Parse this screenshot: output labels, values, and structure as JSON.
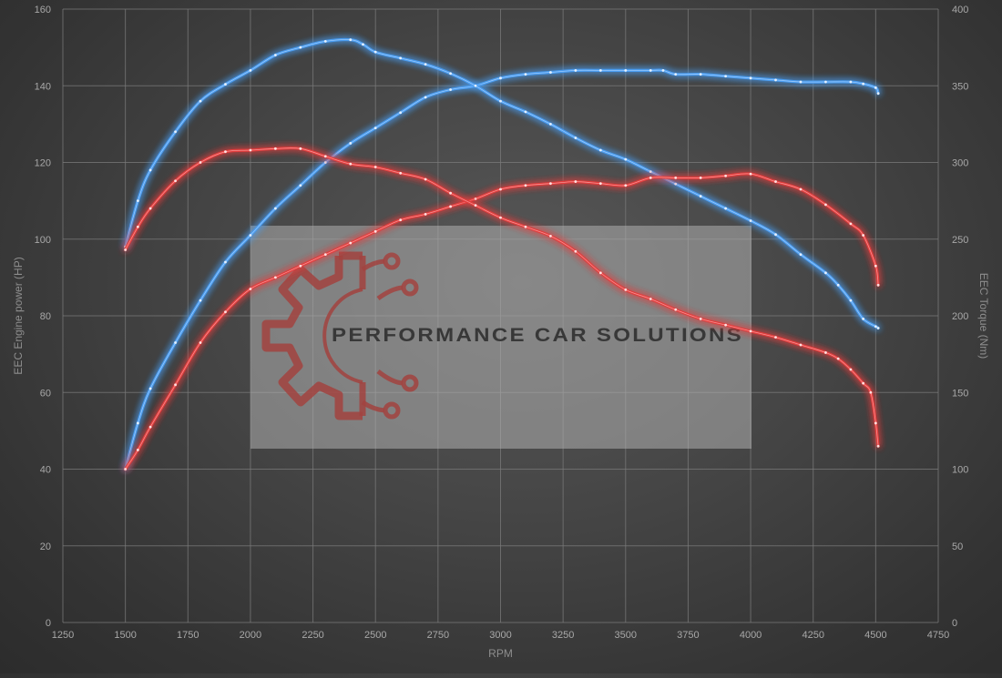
{
  "chart_data": {
    "type": "line",
    "title": "",
    "xlabel": "RPM",
    "ylabel_left": "EEC Engine power (HP)",
    "ylabel_right": "EEC Torque (Nm)",
    "xlim": [
      1250,
      4750
    ],
    "ylim_left": [
      0,
      160
    ],
    "ylim_right": [
      0,
      400
    ],
    "x_ticks": [
      1250,
      1500,
      1750,
      2000,
      2250,
      2500,
      2750,
      3000,
      3250,
      3500,
      3750,
      4000,
      4250,
      4500,
      4750
    ],
    "y_ticks_left": [
      0,
      20,
      40,
      60,
      80,
      100,
      120,
      140,
      160
    ],
    "y_ticks_right": [
      0,
      50,
      100,
      150,
      200,
      250,
      300,
      350,
      400
    ],
    "grid": true,
    "series": [
      {
        "kind": "power-tuned",
        "axis": "left",
        "color": "#4a9cf0",
        "points": [
          [
            1500,
            40
          ],
          [
            1550,
            52
          ],
          [
            1600,
            61
          ],
          [
            1700,
            73
          ],
          [
            1800,
            84
          ],
          [
            1900,
            94
          ],
          [
            2000,
            101
          ],
          [
            2100,
            108
          ],
          [
            2200,
            114
          ],
          [
            2300,
            120
          ],
          [
            2400,
            125
          ],
          [
            2500,
            129
          ],
          [
            2600,
            133
          ],
          [
            2700,
            137
          ],
          [
            2800,
            139
          ],
          [
            2900,
            140
          ],
          [
            3000,
            142
          ],
          [
            3100,
            143
          ],
          [
            3200,
            143.5
          ],
          [
            3300,
            144
          ],
          [
            3400,
            144
          ],
          [
            3500,
            144
          ],
          [
            3600,
            144
          ],
          [
            3650,
            144
          ],
          [
            3700,
            143
          ],
          [
            3800,
            143
          ],
          [
            3900,
            142.5
          ],
          [
            4000,
            142
          ],
          [
            4100,
            141.5
          ],
          [
            4200,
            141
          ],
          [
            4300,
            141
          ],
          [
            4400,
            141
          ],
          [
            4450,
            140.5
          ],
          [
            4500,
            139.5
          ],
          [
            4510,
            138
          ]
        ]
      },
      {
        "kind": "torque-tuned",
        "axis": "right",
        "color": "#4a9cf0",
        "points": [
          [
            1500,
            245
          ],
          [
            1550,
            275
          ],
          [
            1600,
            295
          ],
          [
            1700,
            320
          ],
          [
            1800,
            340
          ],
          [
            1900,
            351
          ],
          [
            2000,
            360
          ],
          [
            2100,
            370
          ],
          [
            2200,
            375
          ],
          [
            2300,
            379
          ],
          [
            2400,
            380
          ],
          [
            2450,
            377
          ],
          [
            2500,
            372
          ],
          [
            2600,
            368
          ],
          [
            2700,
            364
          ],
          [
            2800,
            358
          ],
          [
            2900,
            350
          ],
          [
            3000,
            340
          ],
          [
            3100,
            333
          ],
          [
            3200,
            325
          ],
          [
            3300,
            316
          ],
          [
            3400,
            308
          ],
          [
            3500,
            302
          ],
          [
            3600,
            294
          ],
          [
            3700,
            286
          ],
          [
            3800,
            278
          ],
          [
            3900,
            270
          ],
          [
            4000,
            262
          ],
          [
            4100,
            253
          ],
          [
            4200,
            240
          ],
          [
            4300,
            228
          ],
          [
            4350,
            220
          ],
          [
            4400,
            210
          ],
          [
            4450,
            198
          ],
          [
            4500,
            193
          ],
          [
            4510,
            192
          ]
        ]
      },
      {
        "kind": "power-stock",
        "axis": "left",
        "color": "#e23d3d",
        "points": [
          [
            1500,
            40
          ],
          [
            1550,
            45
          ],
          [
            1600,
            51
          ],
          [
            1700,
            62
          ],
          [
            1800,
            73
          ],
          [
            1900,
            81
          ],
          [
            2000,
            87
          ],
          [
            2100,
            90
          ],
          [
            2200,
            93
          ],
          [
            2300,
            96
          ],
          [
            2400,
            99
          ],
          [
            2500,
            102
          ],
          [
            2600,
            105
          ],
          [
            2700,
            106.5
          ],
          [
            2800,
            108.5
          ],
          [
            2900,
            110.5
          ],
          [
            3000,
            113
          ],
          [
            3100,
            114
          ],
          [
            3200,
            114.5
          ],
          [
            3300,
            115
          ],
          [
            3400,
            114.5
          ],
          [
            3500,
            114
          ],
          [
            3600,
            116
          ],
          [
            3700,
            116
          ],
          [
            3800,
            116
          ],
          [
            3900,
            116.5
          ],
          [
            4000,
            117
          ],
          [
            4100,
            115
          ],
          [
            4200,
            113
          ],
          [
            4300,
            109
          ],
          [
            4400,
            104
          ],
          [
            4450,
            101
          ],
          [
            4500,
            93
          ],
          [
            4510,
            88
          ]
        ]
      },
      {
        "kind": "torque-stock",
        "axis": "right",
        "color": "#e23d3d",
        "points": [
          [
            1500,
            243
          ],
          [
            1550,
            258
          ],
          [
            1600,
            270
          ],
          [
            1700,
            288
          ],
          [
            1800,
            300
          ],
          [
            1900,
            307
          ],
          [
            2000,
            308
          ],
          [
            2100,
            309
          ],
          [
            2200,
            309
          ],
          [
            2300,
            304
          ],
          [
            2400,
            299
          ],
          [
            2500,
            297
          ],
          [
            2600,
            293
          ],
          [
            2700,
            289
          ],
          [
            2800,
            280
          ],
          [
            2900,
            272
          ],
          [
            3000,
            264
          ],
          [
            3100,
            258
          ],
          [
            3200,
            252
          ],
          [
            3300,
            242
          ],
          [
            3400,
            228
          ],
          [
            3500,
            217
          ],
          [
            3600,
            211
          ],
          [
            3700,
            204
          ],
          [
            3800,
            198
          ],
          [
            3900,
            194
          ],
          [
            4000,
            190
          ],
          [
            4100,
            186
          ],
          [
            4200,
            181
          ],
          [
            4300,
            176
          ],
          [
            4350,
            172
          ],
          [
            4400,
            165
          ],
          [
            4450,
            156
          ],
          [
            4480,
            150
          ],
          [
            4500,
            130
          ],
          [
            4510,
            115
          ]
        ]
      }
    ]
  },
  "watermark": {
    "brand": "PERFORMANCE CAR SOLUTIONS",
    "logo_icon": "gear-circuit-icon"
  }
}
